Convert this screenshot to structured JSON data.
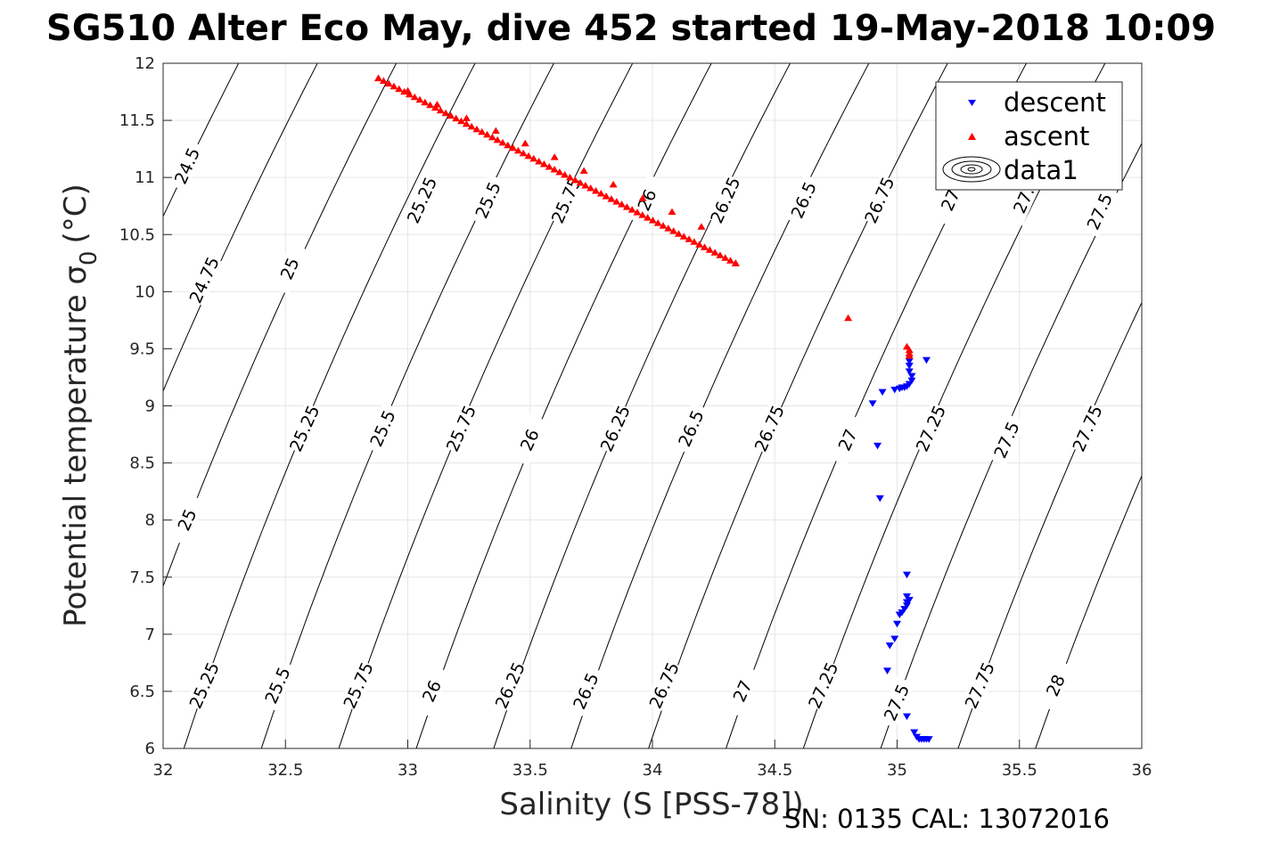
{
  "chart_data": {
    "type": "scatter",
    "title": "SG510 Alter Eco May, dive 452 started 19-May-2018 10:09",
    "xlabel": "Salinity (S [PSS-78])",
    "ylabel": "Potential temperature σ",
    "ylabel_sub": "0",
    "ylabel_unit": "(°C)",
    "footer": "SN: 0135  CAL: 13072016",
    "xlim": [
      32,
      36
    ],
    "ylim": [
      6,
      12
    ],
    "xticks": [
      32,
      32.5,
      33,
      33.5,
      34,
      34.5,
      35,
      35.5,
      36
    ],
    "xtick_labels": [
      "32",
      "32.5",
      "33",
      "33.5",
      "34",
      "34.5",
      "35",
      "35.5",
      "36"
    ],
    "yticks": [
      6,
      6.5,
      7,
      7.5,
      8,
      8.5,
      9,
      9.5,
      10,
      10.5,
      11,
      11.5,
      12
    ],
    "ytick_labels": [
      "6",
      "6.5",
      "7",
      "7.5",
      "8",
      "8.5",
      "9",
      "9.5",
      "10",
      "10.5",
      "11",
      "11.5",
      "12"
    ],
    "grid": true,
    "legend_position": "top-right",
    "legend": [
      "descent",
      "ascent",
      "data1"
    ],
    "colors": {
      "descent": "#0000ff",
      "ascent": "#ff0000",
      "contour": "#000000",
      "grid": "#e6e6e6"
    },
    "contour_levels": [
      24.5,
      24.75,
      25,
      25.25,
      25.5,
      25.75,
      26,
      26.25,
      26.5,
      26.75,
      27,
      27.25,
      27.5,
      27.75,
      28
    ],
    "contour_labels": [
      {
        "text": "24.5",
        "s": 32.1,
        "t": 11.1
      },
      {
        "text": "24.75",
        "s": 32.17,
        "t": 10.1
      },
      {
        "text": "25",
        "s": 32.52,
        "t": 10.2
      },
      {
        "text": "25.25",
        "s": 33.06,
        "t": 10.8
      },
      {
        "text": "25.5",
        "s": 33.33,
        "t": 10.8
      },
      {
        "text": "25.75",
        "s": 33.65,
        "t": 10.8
      },
      {
        "text": "26",
        "s": 33.98,
        "t": 10.8
      },
      {
        "text": "26.25",
        "s": 34.3,
        "t": 10.8
      },
      {
        "text": "26.5",
        "s": 34.62,
        "t": 10.8
      },
      {
        "text": "26.75",
        "s": 34.93,
        "t": 10.8
      },
      {
        "text": "27",
        "s": 35.22,
        "t": 10.8
      },
      {
        "text": "27.",
        "s": 35.52,
        "t": 10.8
      },
      {
        "text": "27.5",
        "s": 35.83,
        "t": 10.7
      },
      {
        "text": "25",
        "s": 32.1,
        "t": 8.0
      },
      {
        "text": "25.25",
        "s": 32.58,
        "t": 8.8
      },
      {
        "text": "25.5",
        "s": 32.9,
        "t": 8.8
      },
      {
        "text": "25.75",
        "s": 33.22,
        "t": 8.8
      },
      {
        "text": "26",
        "s": 33.5,
        "t": 8.7
      },
      {
        "text": "26.25",
        "s": 33.85,
        "t": 8.8
      },
      {
        "text": "26.5",
        "s": 34.16,
        "t": 8.8
      },
      {
        "text": "26.75",
        "s": 34.48,
        "t": 8.8
      },
      {
        "text": "27",
        "s": 34.8,
        "t": 8.7
      },
      {
        "text": "27.25",
        "s": 35.14,
        "t": 8.8
      },
      {
        "text": "27.5",
        "s": 35.45,
        "t": 8.7
      },
      {
        "text": "27.75",
        "s": 35.78,
        "t": 8.8
      },
      {
        "text": "25.25",
        "s": 32.17,
        "t": 6.55
      },
      {
        "text": "25.5",
        "s": 32.47,
        "t": 6.55
      },
      {
        "text": "25.75",
        "s": 32.8,
        "t": 6.55
      },
      {
        "text": "26",
        "s": 33.1,
        "t": 6.5
      },
      {
        "text": "26.25",
        "s": 33.42,
        "t": 6.55
      },
      {
        "text": "26.5",
        "s": 33.73,
        "t": 6.5
      },
      {
        "text": "26.75",
        "s": 34.05,
        "t": 6.55
      },
      {
        "text": "27",
        "s": 34.37,
        "t": 6.5
      },
      {
        "text": "27.25",
        "s": 34.7,
        "t": 6.55
      },
      {
        "text": "27.5",
        "s": 35.0,
        "t": 6.4
      },
      {
        "text": "27.75",
        "s": 35.34,
        "t": 6.55
      },
      {
        "text": "28",
        "s": 35.65,
        "t": 6.55
      }
    ],
    "series": [
      {
        "name": "descent",
        "marker": "triangle-down",
        "points": [
          [
            35.12,
            9.4
          ],
          [
            35.05,
            9.39
          ],
          [
            35.05,
            9.35
          ],
          [
            35.05,
            9.3
          ],
          [
            35.06,
            9.26
          ],
          [
            35.06,
            9.22
          ],
          [
            35.05,
            9.19
          ],
          [
            35.04,
            9.17
          ],
          [
            35.03,
            9.16
          ],
          [
            35.02,
            9.16
          ],
          [
            35.01,
            9.15
          ],
          [
            34.99,
            9.14
          ],
          [
            34.94,
            9.12
          ],
          [
            34.9,
            9.02
          ],
          [
            34.92,
            8.65
          ],
          [
            34.93,
            8.19
          ],
          [
            35.04,
            7.52
          ],
          [
            35.04,
            7.33
          ],
          [
            35.05,
            7.3
          ],
          [
            35.04,
            7.28
          ],
          [
            35.04,
            7.25
          ],
          [
            35.03,
            7.22
          ],
          [
            35.02,
            7.19
          ],
          [
            35.01,
            7.17
          ],
          [
            35.0,
            7.09
          ],
          [
            34.99,
            6.96
          ],
          [
            34.97,
            6.9
          ],
          [
            34.96,
            6.68
          ],
          [
            35.04,
            6.28
          ],
          [
            35.07,
            6.14
          ],
          [
            35.08,
            6.1
          ],
          [
            35.09,
            6.08
          ],
          [
            35.1,
            6.08
          ],
          [
            35.11,
            6.08
          ],
          [
            35.12,
            6.08
          ],
          [
            35.13,
            6.08
          ]
        ]
      },
      {
        "name": "ascent",
        "marker": "triangle-up",
        "points": [
          [
            34.8,
            9.77
          ],
          [
            35.04,
            9.52
          ],
          [
            35.05,
            9.49
          ],
          [
            35.05,
            9.46
          ],
          [
            35.05,
            9.44
          ],
          [
            32.88,
            11.87
          ],
          [
            33.0,
            11.76
          ],
          [
            33.12,
            11.64
          ],
          [
            33.24,
            11.52
          ],
          [
            33.36,
            11.41
          ],
          [
            33.48,
            11.3
          ],
          [
            33.6,
            11.18
          ],
          [
            33.72,
            11.06
          ],
          [
            33.84,
            10.94
          ],
          [
            33.96,
            10.82
          ],
          [
            34.08,
            10.7
          ],
          [
            34.2,
            10.57
          ],
          [
            34.34,
            10.25
          ]
        ]
      }
    ],
    "ascent_line": {
      "s_start": 32.88,
      "t_start": 11.87,
      "s_end": 34.34,
      "t_end": 10.25,
      "count": 70
    }
  }
}
